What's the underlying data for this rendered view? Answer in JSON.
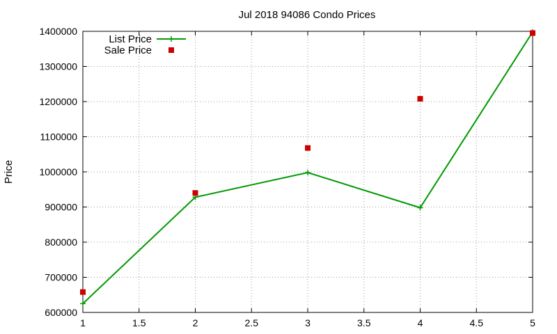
{
  "chart_data": {
    "type": "line",
    "title": "Jul 2018 94086 Condo Prices",
    "xlabel": "",
    "ylabel": "Price",
    "xlim": [
      1,
      5
    ],
    "ylim": [
      600000,
      1400000
    ],
    "x_ticks": [
      "1",
      "1.5",
      "2",
      "2.5",
      "3",
      "3.5",
      "4",
      "4.5",
      "5"
    ],
    "y_ticks": [
      "600000",
      "700000",
      "800000",
      "900000",
      "1000000",
      "1100000",
      "1200000",
      "1300000",
      "1400000"
    ],
    "grid": true,
    "legend_position": "top-left",
    "series": [
      {
        "name": "List Price",
        "style": "line-with-plus-markers",
        "color": "#009900",
        "x": [
          1,
          2,
          3,
          4,
          5
        ],
        "values": [
          625000,
          928000,
          998000,
          898000,
          1398000
        ]
      },
      {
        "name": "Sale Price",
        "style": "square-markers",
        "color": "#cc0000",
        "x": [
          1,
          2,
          3,
          4,
          5
        ],
        "values": [
          658000,
          940000,
          1068000,
          1208000,
          1395000
        ]
      }
    ]
  }
}
